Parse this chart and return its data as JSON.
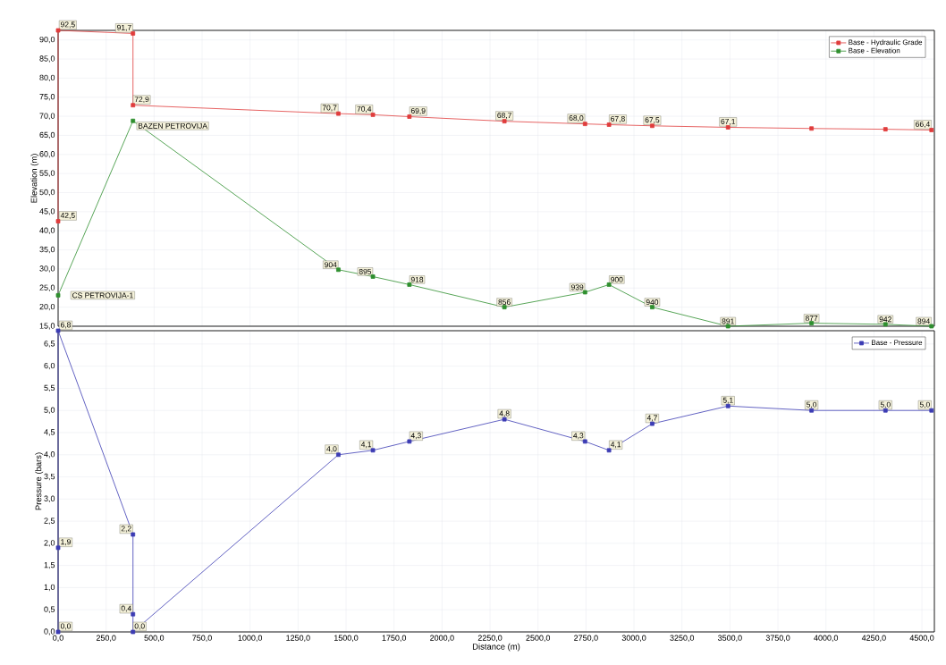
{
  "chart_data": [
    {
      "type": "line",
      "ylabel": "Elevation (m)",
      "xlim": [
        0,
        4565
      ],
      "ylim": [
        15,
        92.5
      ],
      "xticks": [
        0,
        250,
        500,
        750,
        1000,
        1250,
        1500,
        1750,
        2000,
        2250,
        2500,
        2750,
        3000,
        3250,
        3500,
        3750,
        4000,
        4250,
        4500
      ],
      "yticks": [
        {
          "value": 15,
          "label": "15,0"
        },
        {
          "value": 20,
          "label": "20,0"
        },
        {
          "value": 25,
          "label": "25,0"
        },
        {
          "value": 30,
          "label": "30,0"
        },
        {
          "value": 35,
          "label": "35,0"
        },
        {
          "value": 40,
          "label": "40,0"
        },
        {
          "value": 45,
          "label": "45,0"
        },
        {
          "value": 50,
          "label": "50,0"
        },
        {
          "value": 55,
          "label": "55,0"
        },
        {
          "value": 60,
          "label": "60,0"
        },
        {
          "value": 65,
          "label": "65,0"
        },
        {
          "value": 70,
          "label": "70,0"
        },
        {
          "value": 75,
          "label": "75,0"
        },
        {
          "value": 80,
          "label": "80,0"
        },
        {
          "value": 85,
          "label": "85,0"
        },
        {
          "value": 90,
          "label": "90,0"
        }
      ],
      "tick_labels": "y",
      "grid": true,
      "legend": "top right",
      "marker": "square",
      "line_style": "solid",
      "series": [
        {
          "name": "Base - Hydraulic Grade",
          "color": "#e03c3c",
          "x": [
            0,
            0,
            390,
            390,
            1460,
            1640,
            1830,
            2325,
            2745,
            2870,
            3095,
            3490,
            3925,
            4310,
            4550
          ],
          "values": [
            42.5,
            92.5,
            91.7,
            72.9,
            70.7,
            70.4,
            69.9,
            68.7,
            68.0,
            67.8,
            67.5,
            67.1,
            66.8,
            66.6,
            66.4
          ],
          "value_labels": [
            "42,5",
            "92,5",
            "91,7",
            "72,9",
            "70,7",
            "70,4",
            "69,9",
            "68,7",
            "68,0",
            "67,8",
            "67,5",
            "67,1",
            null,
            null,
            "66,4"
          ]
        },
        {
          "name": "Base - Elevation",
          "color": "#2f8f2f",
          "x": [
            0,
            390,
            1460,
            1640,
            1830,
            2325,
            2745,
            2870,
            3095,
            3490,
            3925,
            4310,
            4550
          ],
          "values": [
            23.1,
            68.8,
            29.8,
            28.0,
            25.9,
            20.0,
            23.9,
            25.9,
            20.0,
            15.0,
            15.8,
            15.5,
            15.0
          ]
        }
      ],
      "annotations": [
        {
          "text": "CS PETROVIJA-1",
          "x": 0,
          "y": 23.1
        },
        {
          "text": "BAZEN PETROVIJA",
          "x": 390,
          "y": 68.8
        },
        {
          "text": "904",
          "x": 1460,
          "y": 29.8
        },
        {
          "text": "895",
          "x": 1640,
          "y": 28.0
        },
        {
          "text": "918",
          "x": 1830,
          "y": 25.9
        },
        {
          "text": "856",
          "x": 2325,
          "y": 20.0
        },
        {
          "text": "939",
          "x": 2745,
          "y": 23.9
        },
        {
          "text": "900",
          "x": 2870,
          "y": 25.9
        },
        {
          "text": "940",
          "x": 3095,
          "y": 20.0
        },
        {
          "text": "891",
          "x": 3490,
          "y": 15.0
        },
        {
          "text": "877",
          "x": 3925,
          "y": 15.8
        },
        {
          "text": "942",
          "x": 4310,
          "y": 15.5
        },
        {
          "text": "894",
          "x": 4550,
          "y": 15.0
        }
      ]
    },
    {
      "type": "line",
      "xlabel": "Distance (m)",
      "ylabel": "Pressure (bars)",
      "xlim": [
        0,
        4565
      ],
      "ylim": [
        0,
        6.8
      ],
      "xticks": [
        {
          "value": 0,
          "label": "0,0"
        },
        {
          "value": 250,
          "label": "250,0"
        },
        {
          "value": 500,
          "label": "500,0"
        },
        {
          "value": 750,
          "label": "750,0"
        },
        {
          "value": 1000,
          "label": "1000,0"
        },
        {
          "value": 1250,
          "label": "1250,0"
        },
        {
          "value": 1500,
          "label": "1500,0"
        },
        {
          "value": 1750,
          "label": "1750,0"
        },
        {
          "value": 2000,
          "label": "2000,0"
        },
        {
          "value": 2250,
          "label": "2250,0"
        },
        {
          "value": 2500,
          "label": "2500,0"
        },
        {
          "value": 2750,
          "label": "2750,0"
        },
        {
          "value": 3000,
          "label": "3000,0"
        },
        {
          "value": 3250,
          "label": "3250,0"
        },
        {
          "value": 3500,
          "label": "3500,0"
        },
        {
          "value": 3750,
          "label": "3750,0"
        },
        {
          "value": 4000,
          "label": "4000,0"
        },
        {
          "value": 4250,
          "label": "4250,0"
        },
        {
          "value": 4500,
          "label": "4500,0"
        }
      ],
      "yticks": [
        {
          "value": 0,
          "label": "0,0"
        },
        {
          "value": 0.5,
          "label": "0,5"
        },
        {
          "value": 1,
          "label": "1,0"
        },
        {
          "value": 1.5,
          "label": "1,5"
        },
        {
          "value": 2,
          "label": "2,0"
        },
        {
          "value": 2.5,
          "label": "2,5"
        },
        {
          "value": 3,
          "label": "3,0"
        },
        {
          "value": 3.5,
          "label": "3,5"
        },
        {
          "value": 4,
          "label": "4,0"
        },
        {
          "value": 4.5,
          "label": "4,5"
        },
        {
          "value": 5,
          "label": "5,0"
        },
        {
          "value": 5.5,
          "label": "5,5"
        },
        {
          "value": 6,
          "label": "6,0"
        },
        {
          "value": 6.5,
          "label": "6,5"
        }
      ],
      "grid": true,
      "legend": "top right",
      "marker": "square",
      "line_style": "solid",
      "series": [
        {
          "name": "Base - Pressure",
          "color": "#3c3cb4",
          "x": [
            0,
            0,
            0,
            390,
            390,
            390,
            1460,
            1640,
            1830,
            2325,
            2745,
            2870,
            3095,
            3490,
            3925,
            4310,
            4550
          ],
          "values": [
            0.0,
            1.9,
            6.8,
            2.2,
            0.4,
            0.0,
            4.0,
            4.1,
            4.3,
            4.8,
            4.3,
            4.1,
            4.7,
            5.1,
            5.0,
            5.0,
            5.0
          ],
          "value_labels": [
            "0,0",
            "1,9",
            "6,8",
            "2,2",
            "0,4",
            "0,0",
            "4,0",
            "4,1",
            "4,3",
            "4,8",
            "4,3",
            "4,1",
            "4,7",
            "5,1",
            "5,0",
            "5,0",
            "5,0"
          ]
        }
      ]
    }
  ]
}
